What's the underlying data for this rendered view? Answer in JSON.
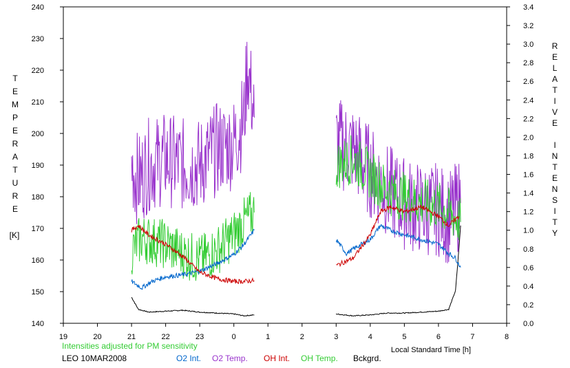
{
  "chart_data": {
    "type": "line",
    "xlabel": "Local Standard Time [h]",
    "ylabel_left": [
      "T",
      "E",
      "M",
      "P",
      "E",
      "R",
      "A",
      "T",
      "U",
      "R",
      "E",
      "",
      "[K]"
    ],
    "ylabel_right": [
      "R",
      "E",
      "L",
      "A",
      "T",
      "I",
      "V",
      "E",
      "",
      "I",
      "N",
      "T",
      "E",
      "N",
      "S",
      "I",
      "T",
      "Y"
    ],
    "x_ticks": [
      "19",
      "20",
      "21",
      "22",
      "23",
      "0",
      "1",
      "2",
      "3",
      "4",
      "5",
      "6",
      "7",
      "8"
    ],
    "y_left_ticks": [
      "140",
      "150",
      "160",
      "170",
      "180",
      "190",
      "200",
      "210",
      "220",
      "230",
      "240"
    ],
    "y_right_ticks": [
      "0.0",
      "0.2",
      "0.4",
      "0.6",
      "0.8",
      "1.0",
      "1.2",
      "1.4",
      "1.6",
      "1.8",
      "2.0",
      "2.2",
      "2.4",
      "2.6",
      "2.8",
      "3.0",
      "3.2",
      "3.4"
    ],
    "xlim": [
      19,
      32
    ],
    "ylim_left": [
      140,
      240
    ],
    "ylim_right": [
      0,
      3.4
    ],
    "grid": false,
    "segments": [
      [
        21.0,
        24.6
      ],
      [
        27.0,
        30.65
      ]
    ],
    "series": [
      {
        "name": "O2 Int.",
        "axis": "right",
        "color": "#0066cc",
        "points": [
          [
            21.0,
            0.45
          ],
          [
            21.3,
            0.38
          ],
          [
            21.6,
            0.45
          ],
          [
            22.0,
            0.5
          ],
          [
            22.5,
            0.52
          ],
          [
            23.0,
            0.56
          ],
          [
            23.5,
            0.64
          ],
          [
            24.0,
            0.74
          ],
          [
            24.3,
            0.85
          ],
          [
            24.6,
            1.0
          ],
          [
            27.0,
            0.9
          ],
          [
            27.3,
            0.75
          ],
          [
            27.6,
            0.82
          ],
          [
            28.0,
            0.9
          ],
          [
            28.3,
            1.05
          ],
          [
            28.6,
            1.0
          ],
          [
            29.0,
            0.95
          ],
          [
            29.5,
            0.9
          ],
          [
            30.0,
            0.85
          ],
          [
            30.3,
            0.75
          ],
          [
            30.5,
            0.7
          ],
          [
            30.65,
            0.6
          ]
        ]
      },
      {
        "name": "O2 Temp.",
        "axis": "left",
        "color": "#9933cc",
        "points": [
          [
            21.0,
            190
          ],
          [
            21.2,
            185
          ],
          [
            21.5,
            190
          ],
          [
            22.0,
            192
          ],
          [
            22.5,
            190
          ],
          [
            23.0,
            190
          ],
          [
            23.5,
            195
          ],
          [
            24.0,
            197
          ],
          [
            24.3,
            205
          ],
          [
            24.4,
            222
          ],
          [
            24.6,
            205
          ],
          [
            27.0,
            197
          ],
          [
            27.5,
            195
          ],
          [
            28.0,
            188
          ],
          [
            28.5,
            182
          ],
          [
            29.0,
            178
          ],
          [
            29.5,
            176
          ],
          [
            30.0,
            176
          ],
          [
            30.3,
            173
          ],
          [
            30.65,
            178
          ]
        ]
      },
      {
        "name": "OH Int.",
        "axis": "right",
        "color": "#cc0000",
        "points": [
          [
            21.0,
            1.0
          ],
          [
            21.2,
            1.05
          ],
          [
            21.5,
            0.95
          ],
          [
            22.0,
            0.85
          ],
          [
            22.5,
            0.72
          ],
          [
            23.0,
            0.55
          ],
          [
            23.5,
            0.48
          ],
          [
            24.0,
            0.45
          ],
          [
            24.3,
            0.45
          ],
          [
            24.6,
            0.46
          ],
          [
            27.0,
            0.62
          ],
          [
            27.5,
            0.7
          ],
          [
            28.0,
            0.95
          ],
          [
            28.3,
            1.2
          ],
          [
            28.6,
            1.25
          ],
          [
            29.0,
            1.2
          ],
          [
            29.5,
            1.25
          ],
          [
            30.0,
            1.15
          ],
          [
            30.3,
            1.05
          ],
          [
            30.6,
            1.15
          ]
        ]
      },
      {
        "name": "OH Temp.",
        "axis": "left",
        "color": "#33cc33",
        "points": [
          [
            21.0,
            163
          ],
          [
            21.3,
            167
          ],
          [
            21.6,
            166
          ],
          [
            22.0,
            165
          ],
          [
            22.5,
            162
          ],
          [
            23.0,
            160
          ],
          [
            23.5,
            163
          ],
          [
            24.0,
            168
          ],
          [
            24.3,
            172
          ],
          [
            24.6,
            175
          ],
          [
            27.0,
            190
          ],
          [
            27.5,
            192
          ],
          [
            28.0,
            187
          ],
          [
            28.5,
            182
          ],
          [
            29.0,
            180
          ],
          [
            29.5,
            178
          ],
          [
            30.0,
            177
          ],
          [
            30.3,
            175
          ],
          [
            30.65,
            172
          ]
        ]
      },
      {
        "name": "Bckgrd.",
        "axis": "right",
        "color": "#000000",
        "points": [
          [
            21.0,
            0.28
          ],
          [
            21.2,
            0.15
          ],
          [
            21.5,
            0.12
          ],
          [
            22.0,
            0.13
          ],
          [
            22.5,
            0.14
          ],
          [
            23.0,
            0.12
          ],
          [
            23.5,
            0.11
          ],
          [
            24.0,
            0.1
          ],
          [
            24.3,
            0.08
          ],
          [
            24.6,
            0.09
          ],
          [
            27.0,
            0.1
          ],
          [
            27.5,
            0.08
          ],
          [
            28.0,
            0.09
          ],
          [
            28.5,
            0.11
          ],
          [
            29.0,
            0.11
          ],
          [
            29.5,
            0.12
          ],
          [
            30.0,
            0.13
          ],
          [
            30.3,
            0.15
          ],
          [
            30.5,
            0.35
          ],
          [
            30.6,
            0.8
          ],
          [
            30.65,
            1.05
          ]
        ]
      }
    ]
  },
  "footer": {
    "note": "Intensities adjusted for PM sensitivity",
    "station": "LEO 10MAR2008",
    "note_color": "#33cc33"
  }
}
